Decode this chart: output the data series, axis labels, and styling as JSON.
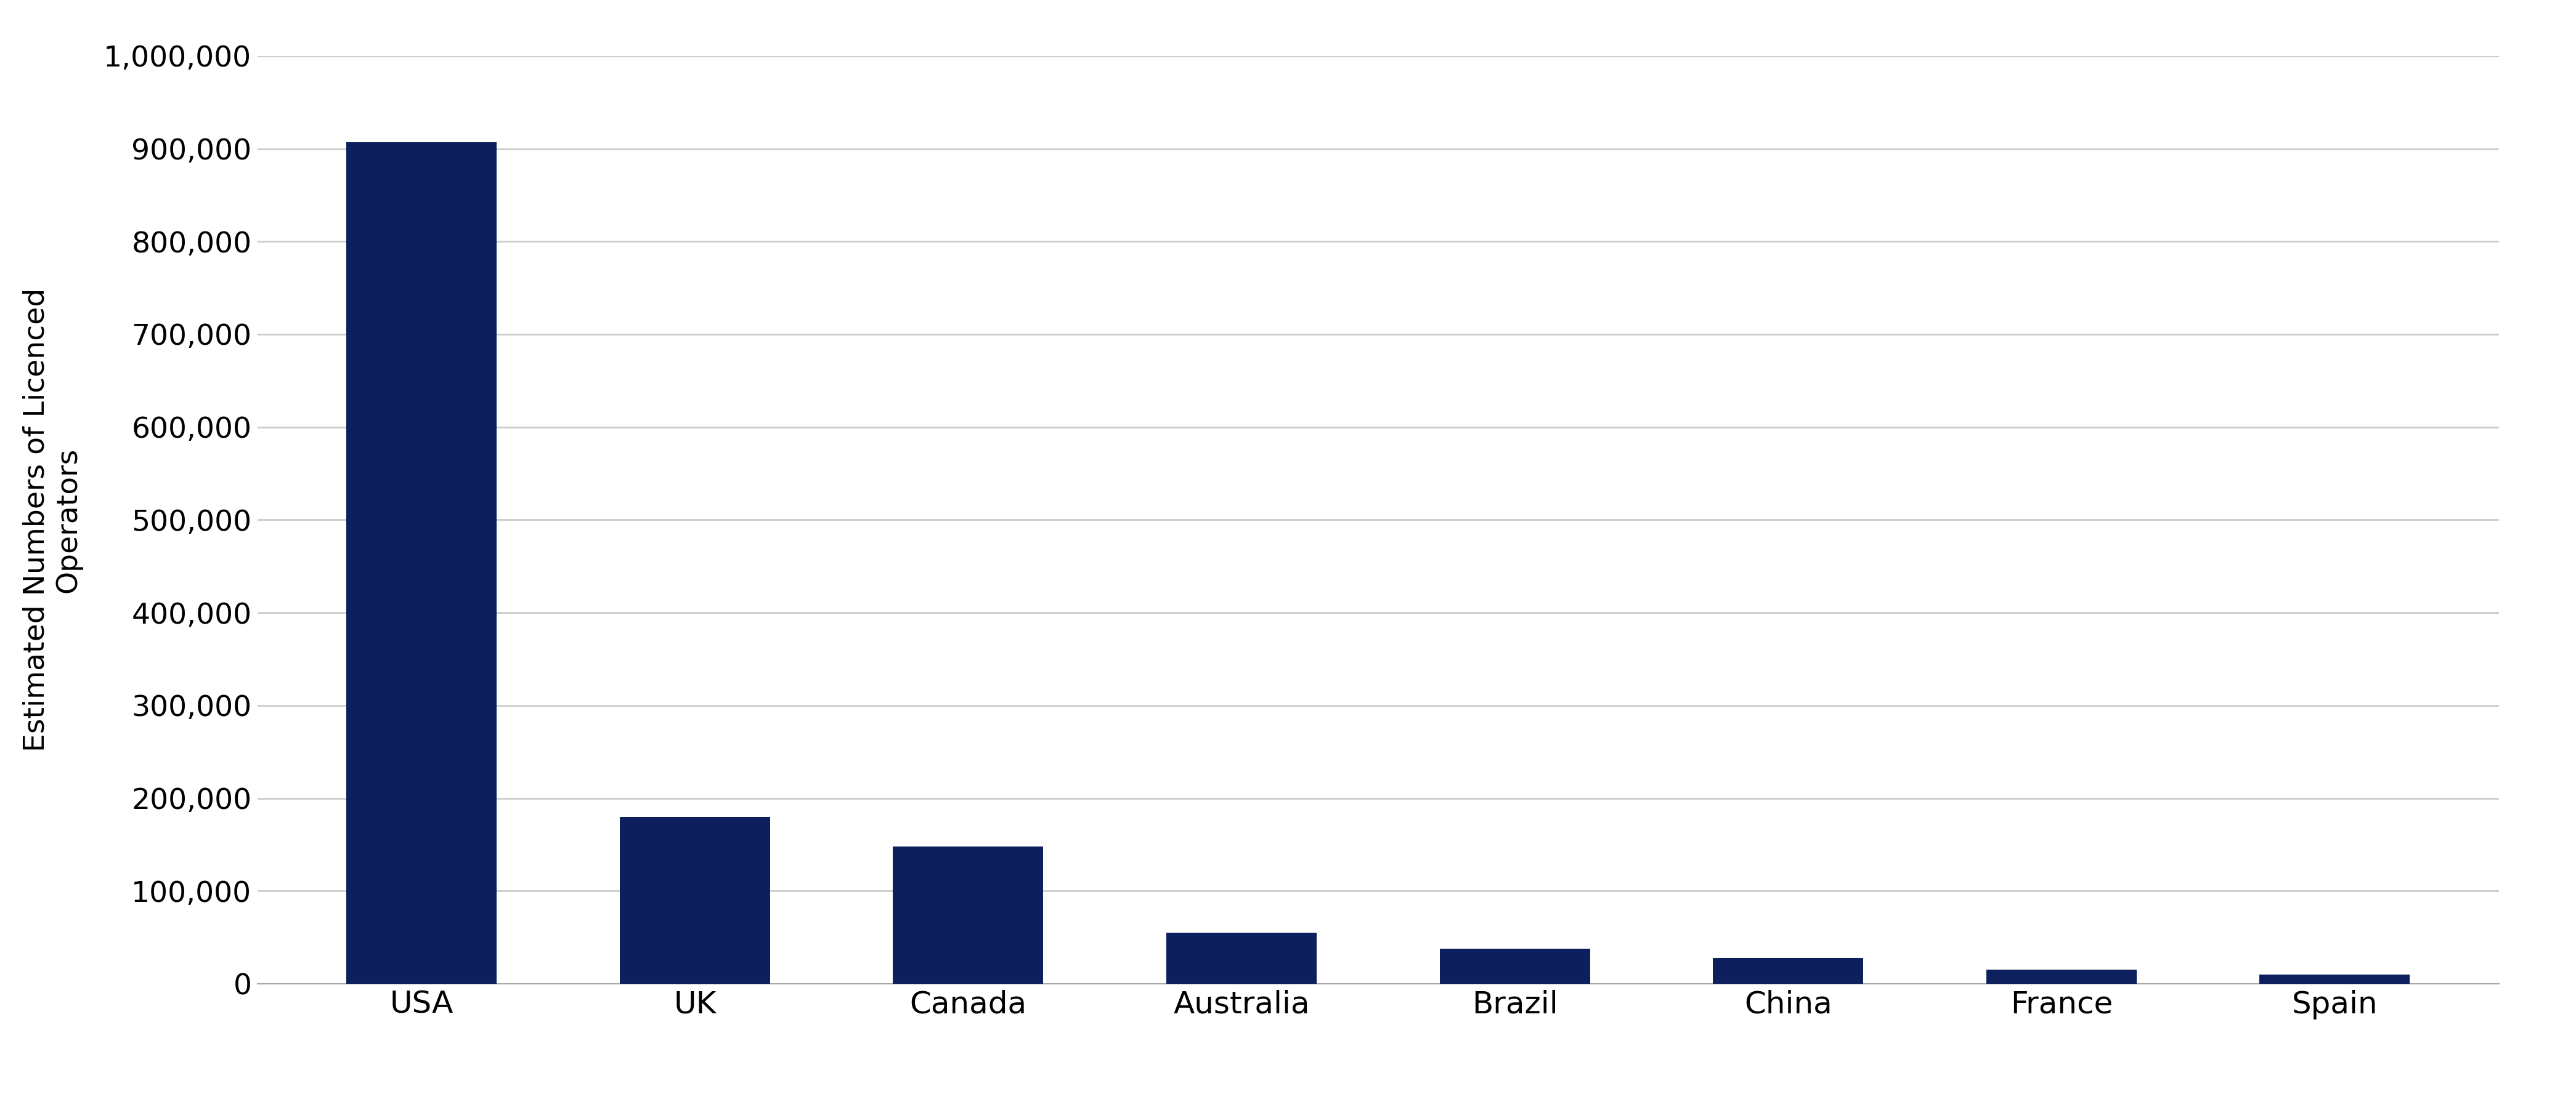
{
  "categories": [
    "USA",
    "UK",
    "Canada",
    "Australia",
    "Brazil",
    "China",
    "France",
    "Spain"
  ],
  "values": [
    907000,
    180000,
    148000,
    55000,
    38000,
    28000,
    15000,
    10000
  ],
  "bar_color": "#0d1f5c",
  "ylabel_line1": "Estimated Numbers of Licenced",
  "ylabel_line2": "Operators",
  "ylim": [
    0,
    1000000
  ],
  "yticks": [
    0,
    100000,
    200000,
    300000,
    400000,
    500000,
    600000,
    700000,
    800000,
    900000,
    1000000
  ],
  "background_color": "#ffffff",
  "grid_color": "#cccccc",
  "tick_fontsize": 34,
  "ylabel_fontsize": 34,
  "xlabel_fontsize": 36,
  "bar_width": 0.55
}
